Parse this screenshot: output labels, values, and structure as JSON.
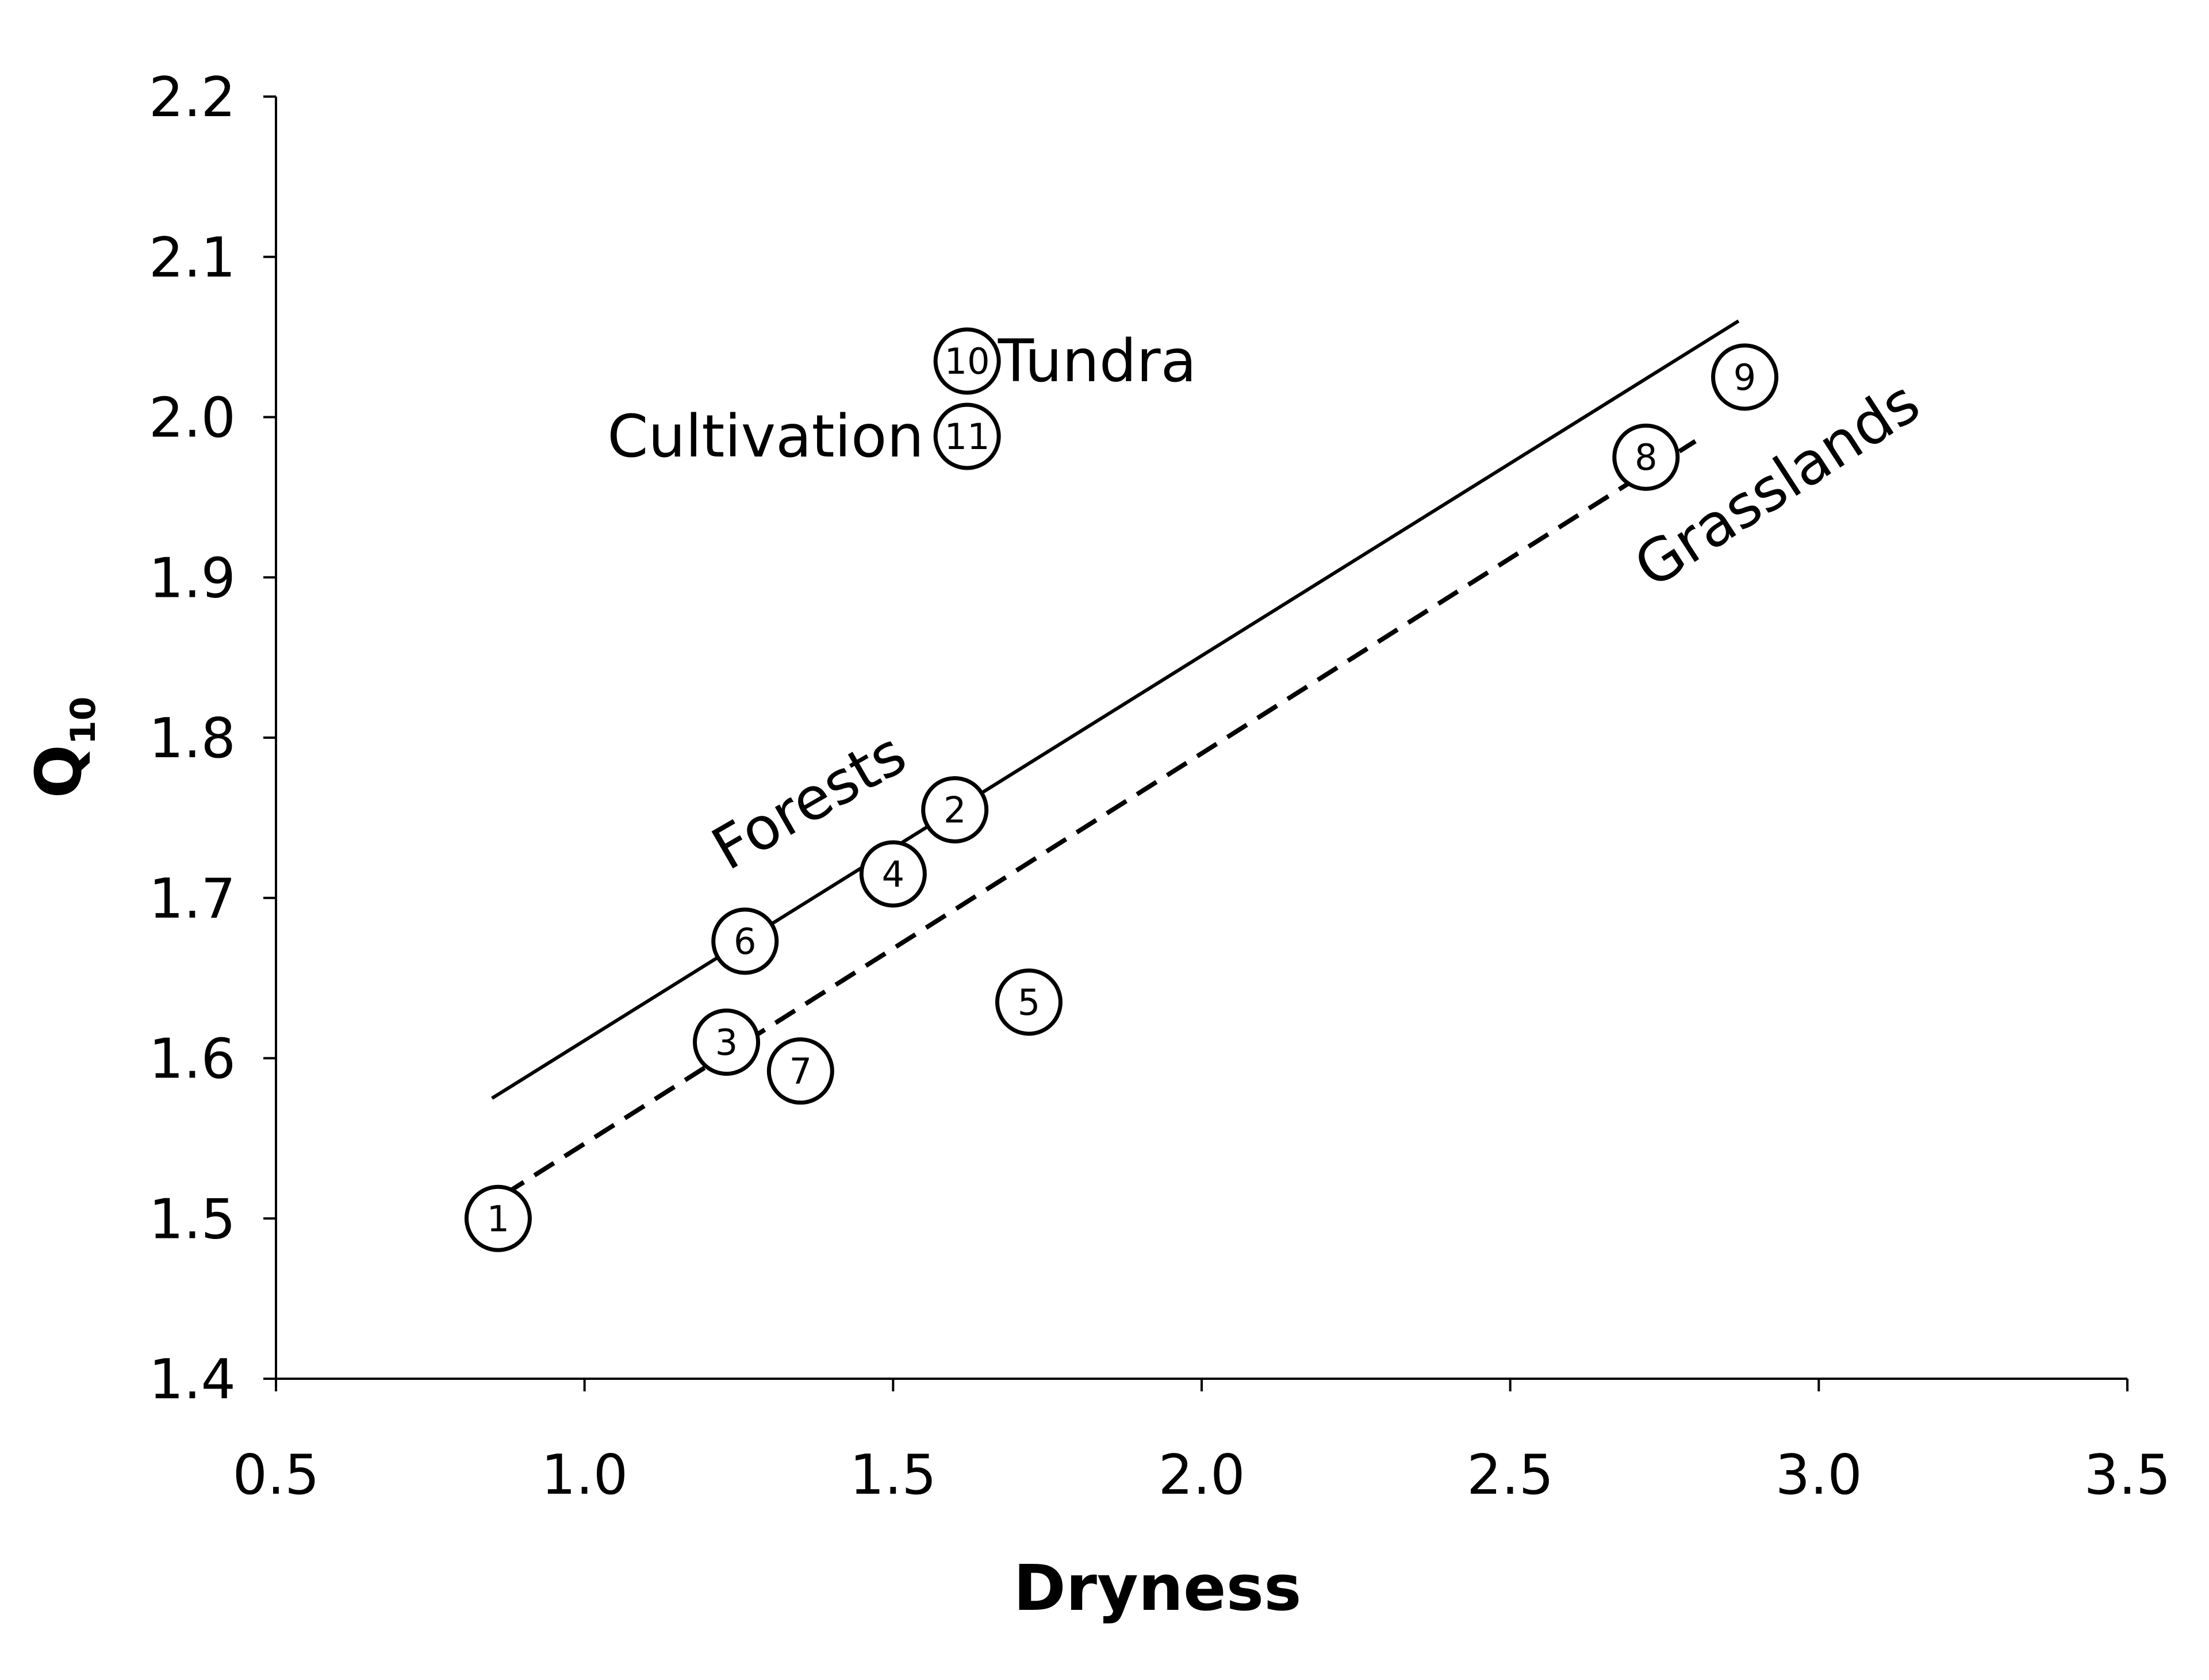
{
  "chart_data": {
    "type": "scatter",
    "xlabel": "Dryness",
    "ylabel": {
      "main": "Q",
      "sub": "10"
    },
    "xlim": [
      0.5,
      3.5
    ],
    "ylim": [
      1.4,
      2.2
    ],
    "xticks": [
      "0.5",
      "1.0",
      "1.5",
      "2.0",
      "2.5",
      "3.0",
      "3.5"
    ],
    "yticks": [
      "1.4",
      "1.5",
      "1.6",
      "1.7",
      "1.8",
      "1.9",
      "2.0",
      "2.1",
      "2.2"
    ],
    "grid": false,
    "points": [
      {
        "label": "1",
        "x": 0.86,
        "y": 1.5
      },
      {
        "label": "2",
        "x": 1.6,
        "y": 1.755
      },
      {
        "label": "3",
        "x": 1.23,
        "y": 1.61
      },
      {
        "label": "4",
        "x": 1.5,
        "y": 1.715
      },
      {
        "label": "5",
        "x": 1.72,
        "y": 1.635
      },
      {
        "label": "6",
        "x": 1.26,
        "y": 1.673
      },
      {
        "label": "7",
        "x": 1.35,
        "y": 1.592
      },
      {
        "label": "8",
        "x": 2.72,
        "y": 1.975
      },
      {
        "label": "9",
        "x": 2.88,
        "y": 2.025
      },
      {
        "label": "10",
        "x": 1.62,
        "y": 2.035
      },
      {
        "label": "11",
        "x": 1.62,
        "y": 1.988
      }
    ],
    "lines": [
      {
        "name": "Forests",
        "style": "solid",
        "x": [
          0.85,
          2.87
        ],
        "y": [
          1.575,
          2.06
        ]
      },
      {
        "name": "Grasslands",
        "style": "dashed",
        "x": [
          0.87,
          2.8
        ],
        "y": [
          1.515,
          1.985
        ]
      }
    ],
    "annotations": [
      {
        "text": "Tundra",
        "x": 1.67,
        "y": 2.035,
        "anchor": "start",
        "rotate": 0
      },
      {
        "text": "Cultivation",
        "x": 1.55,
        "y": 1.988,
        "anchor": "end",
        "rotate": 0
      },
      {
        "text": "Forests",
        "x": 1.38,
        "y": 1.762,
        "anchor": "middle",
        "rotate": -30
      },
      {
        "text": "Grasslands",
        "x": 2.95,
        "y": 1.96,
        "anchor": "middle",
        "rotate": -33
      }
    ]
  }
}
